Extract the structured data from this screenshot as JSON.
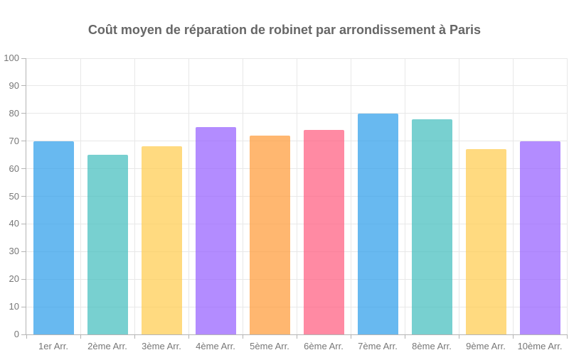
{
  "chart_data": {
    "type": "bar",
    "title": "Coût moyen de réparation de robinet par arrondissement à Paris",
    "categories": [
      "1er Arr.",
      "2ème Arr.",
      "3ème Arr.",
      "4ème Arr.",
      "5ème Arr.",
      "6ème Arr.",
      "7ème Arr.",
      "8ème Arr.",
      "9ème Arr.",
      "10ème Arr."
    ],
    "values": [
      70,
      65,
      68,
      75,
      72,
      74,
      80,
      78,
      67,
      70
    ],
    "bar_colors": [
      "rgba(54,162,235,0.75)",
      "rgba(75,192,192,0.75)",
      "rgba(255,205,86,0.75)",
      "rgba(153,102,255,0.75)",
      "rgba(255,159,64,0.75)",
      "rgba(255,99,132,0.75)",
      "rgba(54,162,235,0.75)",
      "rgba(75,192,192,0.75)",
      "rgba(255,205,86,0.75)",
      "rgba(153,102,255,0.75)"
    ],
    "xlabel": "",
    "ylabel": "",
    "ylim": [
      0,
      100
    ],
    "ytick_step": 10,
    "grid": true,
    "legend": "none",
    "colors": {
      "title_text": "#666666",
      "tick_text": "#777777",
      "grid_line": "#e8e8e8",
      "axis_line": "#b4b4b4",
      "background": "#ffffff"
    }
  }
}
